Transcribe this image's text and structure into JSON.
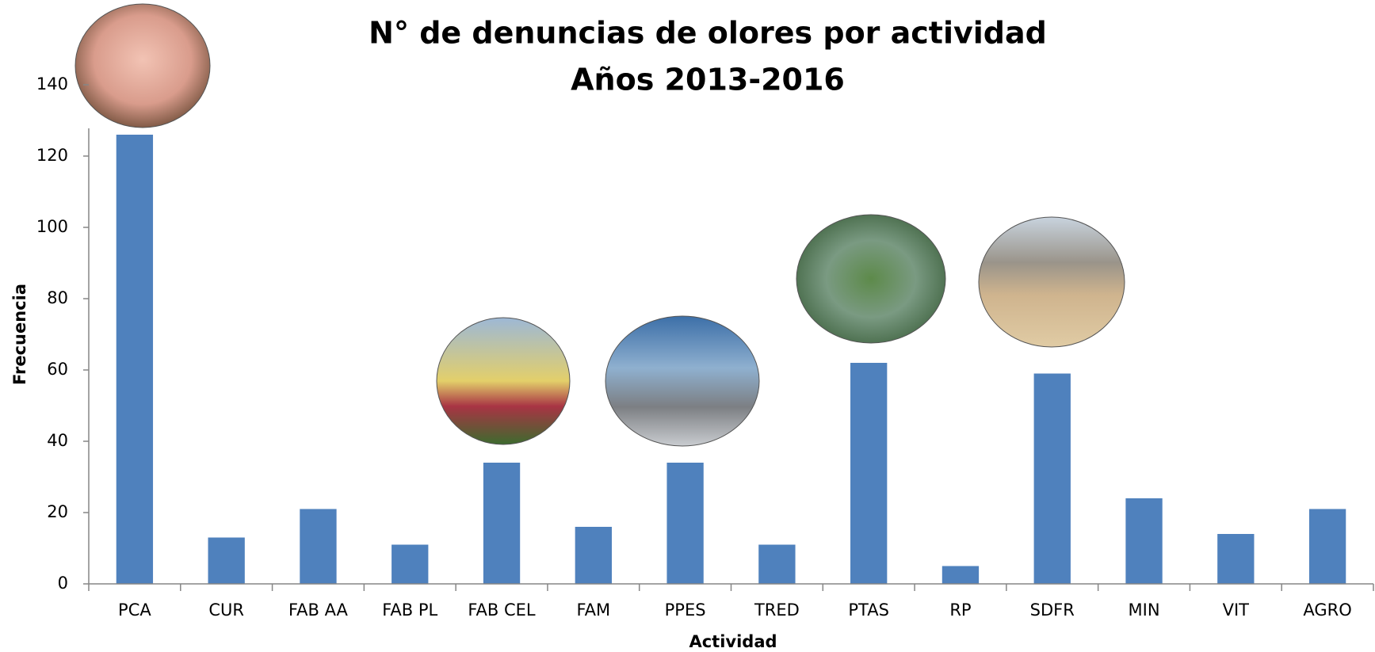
{
  "chart_data": {
    "type": "bar",
    "title": "N° de denuncias de olores por actividad",
    "subtitle": "Años 2013-2016",
    "x_label": "Actividad",
    "y_label": "Frecuencia",
    "categories": [
      "PCA",
      "CUR",
      "FAB AA",
      "FAB PL",
      "FAB CEL",
      "FAM",
      "PPES",
      "TRED",
      "PTAS",
      "RP",
      "SDFR",
      "MIN",
      "VIT",
      "AGRO"
    ],
    "values": [
      126,
      13,
      21,
      11,
      34,
      16,
      34,
      11,
      62,
      5,
      59,
      24,
      14,
      21
    ],
    "color": "#4f81bd",
    "ylim": [
      0,
      140
    ],
    "yticks": [
      0,
      20,
      40,
      60,
      80,
      100,
      120,
      140
    ],
    "grid": false
  }
}
